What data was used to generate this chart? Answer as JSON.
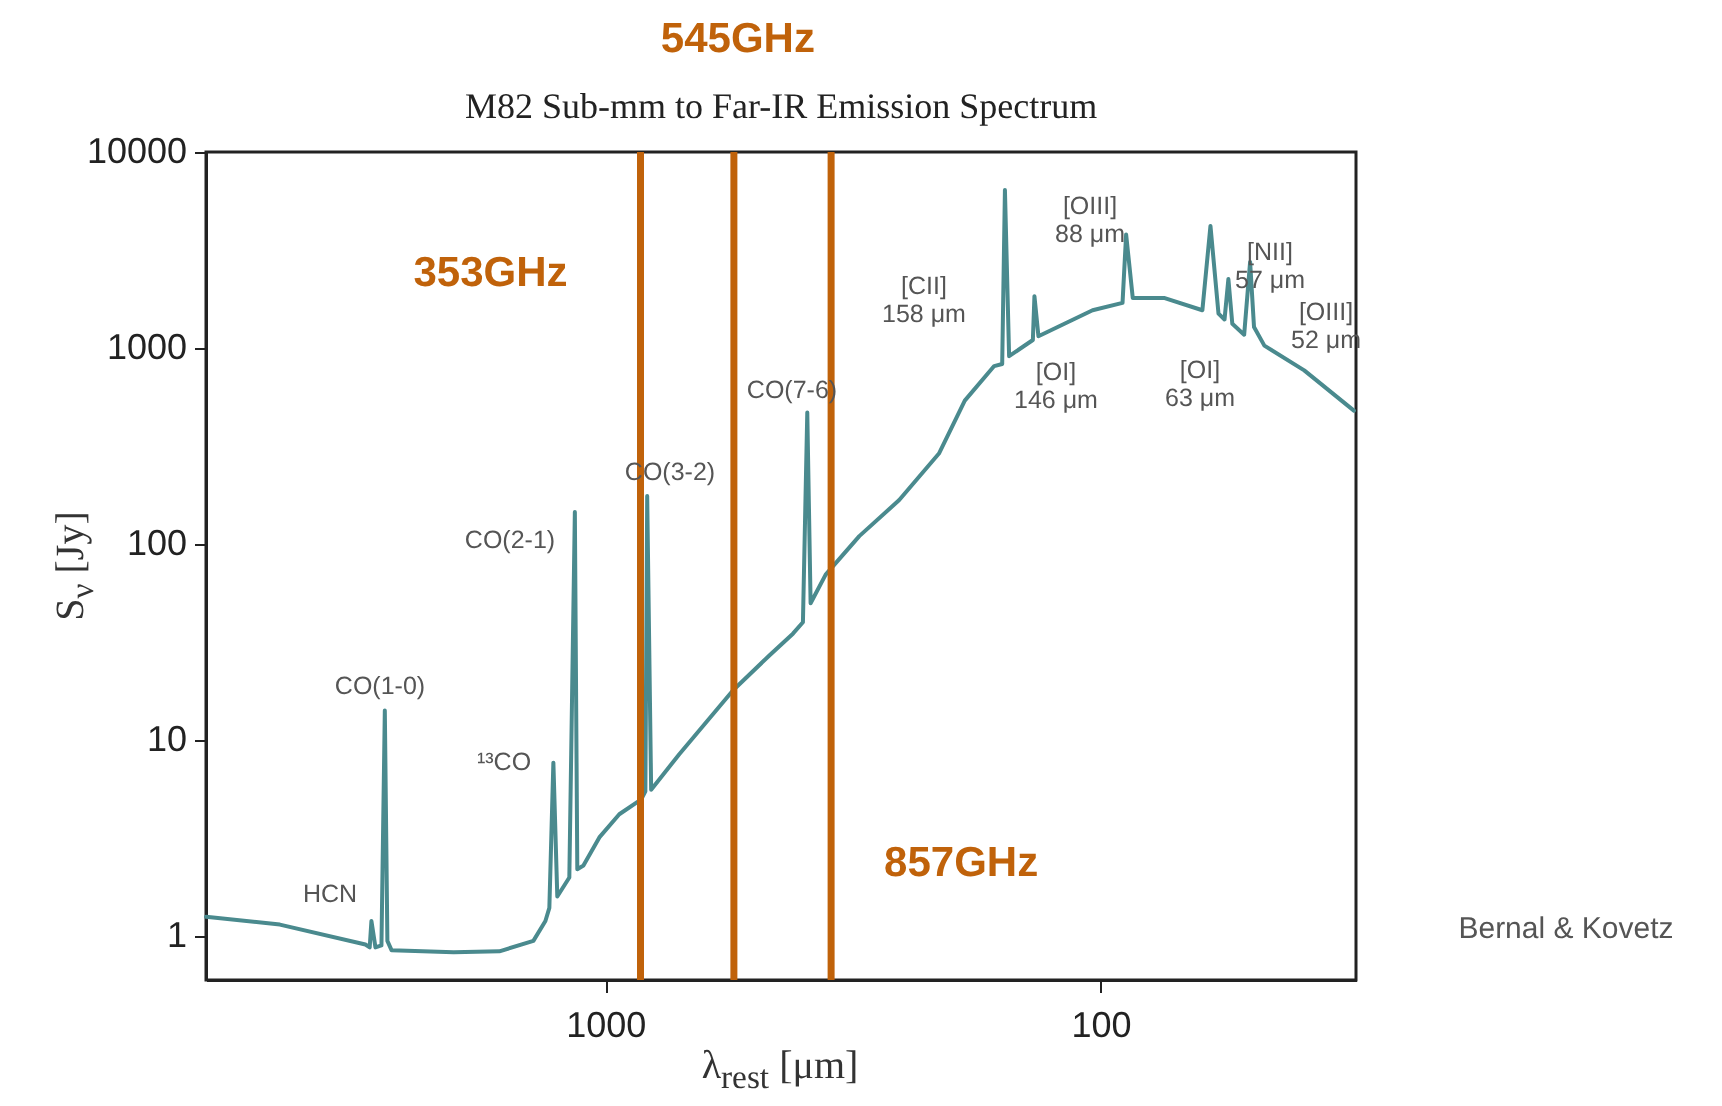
{
  "chart_data": {
    "type": "line",
    "title": "M82 Sub-mm to Far-IR Emission Spectrum",
    "xlabel": "λ$_{rest}$ [μm]",
    "ylabel": "S$_{ν}$ [Jy]",
    "log": "xy",
    "xlim": [
      6400,
      30.5
    ],
    "ylim": [
      0.6,
      10000
    ],
    "xticks": [
      1000,
      100
    ],
    "yticks": [
      1,
      10,
      100,
      1000,
      10000
    ],
    "marker": "none",
    "color": "#4a8a8e",
    "x": [
      6400,
      4540,
      3050,
      2990,
      2966,
      2911,
      2831,
      2787,
      2754,
      2700,
      2024,
      1636,
      1397,
      1321,
      1297,
      1273,
      1250,
      1182,
      1152,
      1139,
      1107,
      1028,
      937,
      846,
      830,
      823,
      808,
      709,
      552,
      467,
      418,
      399,
      391,
      385,
      359,
      307,
      255,
      212,
      188,
      164,
      158,
      156,
      153,
      137,
      136,
      133.5,
      103.8,
      90.3,
      88.8,
      86.1,
      74.2,
      62.3,
      60,
      57.8,
      56.2,
      55.2,
      54.2,
      51.3,
      49.9,
      49,
      46.7,
      38.8,
      30.8
    ],
    "values": [
      1.26,
      1.15,
      0.91,
      0.88,
      1.2,
      0.88,
      0.9,
      14.2,
      0.95,
      0.85,
      0.83,
      0.84,
      0.95,
      1.2,
      1.4,
      7.7,
      1.6,
      2.0,
      146,
      2.2,
      2.3,
      3.2,
      4.2,
      5.0,
      5.5,
      176,
      5.6,
      8.5,
      18,
      27,
      35,
      40,
      470,
      50,
      70,
      110,
      168,
      290,
      540,
      810,
      830,
      6400,
      910,
      1100,
      1840,
      1150,
      1560,
      1700,
      3800,
      1800,
      1800,
      1560,
      4200,
      1500,
      1400,
      2250,
      1330,
      1170,
      2750,
      1280,
      1030,
      770,
      480
    ],
    "ref_lines": [
      {
        "axis": "x",
        "value": 849,
        "label": "353GHz",
        "color": "#c0620a"
      },
      {
        "axis": "x",
        "value": 550,
        "label": "545GHz",
        "color": "#c0620a"
      },
      {
        "axis": "x",
        "value": 350,
        "label": "857GHz",
        "color": "#c0620a"
      }
    ],
    "annotations": [
      "HCN",
      "CO(1-0)",
      "¹³CO",
      "CO(2-1)",
      "CO(3-2)",
      "CO(7-6)",
      "[CII]\n158 μm",
      "[OI]\n146 μm",
      "[OIII]\n88 μm",
      "[OI]\n63 μm",
      "[NII]\n57 μm",
      "[OIII]\n52 μm",
      "Bernal & Kovetz"
    ]
  }
}
